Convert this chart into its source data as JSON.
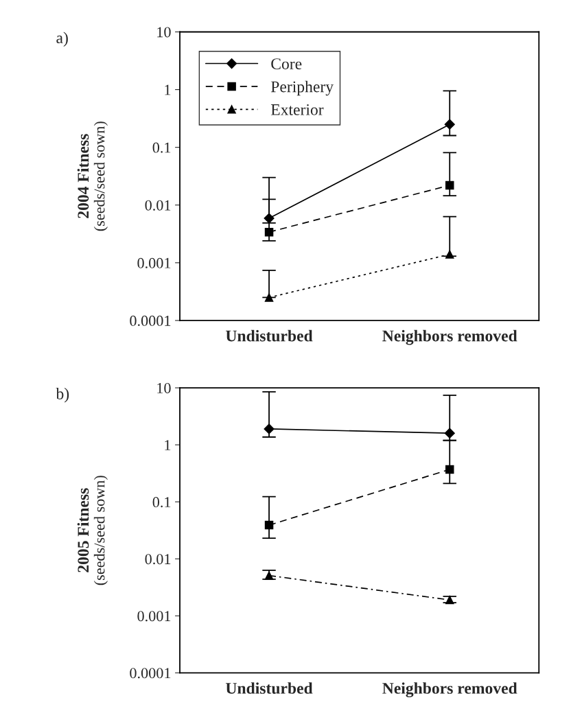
{
  "chart_data": [
    {
      "type": "line",
      "categories": [
        "Undisturbed",
        "Neighbors removed"
      ],
      "ylabel": "2004 Fitness\n(seeds/seed sown)",
      "log": "y",
      "ylim": [
        0.0001,
        10
      ],
      "yticks": [
        0.0001,
        0.001,
        0.01,
        0.1,
        1,
        10
      ],
      "grid": false,
      "legend": "top left",
      "annotations": [
        "a)"
      ],
      "series": [
        {
          "name": "Core",
          "color": "#000000",
          "marker": "diamond",
          "line_style": "solid",
          "values": [
            0.0059,
            0.25
          ],
          "errors": [
            [
              0.0049,
              0.03
            ],
            [
              0.16,
              0.95
            ]
          ]
        },
        {
          "name": "Periphery",
          "color": "#000000",
          "marker": "square",
          "line_style": "dashed",
          "values": [
            0.0034,
            0.022
          ],
          "errors": [
            [
              0.0024,
              0.0126
            ],
            [
              0.0145,
              0.081
            ]
          ]
        },
        {
          "name": "Exterior",
          "color": "#000000",
          "marker": "triangle",
          "line_style": "dotted",
          "values": [
            0.00025,
            0.0014
          ],
          "errors": [
            [
              0.00025,
              0.00074
            ],
            [
              0.0013,
              0.0063
            ]
          ]
        }
      ]
    },
    {
      "type": "line",
      "categories": [
        "Undisturbed",
        "Neighbors removed"
      ],
      "ylabel": "2005 Fitness\n(seeds/seed sown)",
      "log": "y",
      "ylim": [
        0.0001,
        10
      ],
      "yticks": [
        0.0001,
        0.001,
        0.01,
        0.1,
        1,
        10
      ],
      "grid": false,
      "legend": false,
      "annotations": [
        "b)"
      ],
      "series": [
        {
          "color": "#000000",
          "marker": "diamond",
          "line_style": "solid",
          "values": [
            1.9,
            1.6
          ],
          "errors": [
            [
              1.37,
              8.5
            ],
            [
              1.2,
              7.4
            ]
          ]
        },
        {
          "color": "#000000",
          "marker": "square",
          "line_style": "dashed",
          "values": [
            0.039,
            0.37
          ],
          "errors": [
            [
              0.023,
              0.123
            ],
            [
              0.21,
              1.2
            ]
          ]
        },
        {
          "color": "#000000",
          "marker": "triangle",
          "line_style": "dashdot",
          "values": [
            0.0051,
            0.0019
          ],
          "errors": [
            [
              0.0044,
              0.0063
            ],
            [
              0.0017,
              0.0022
            ]
          ]
        }
      ]
    }
  ]
}
